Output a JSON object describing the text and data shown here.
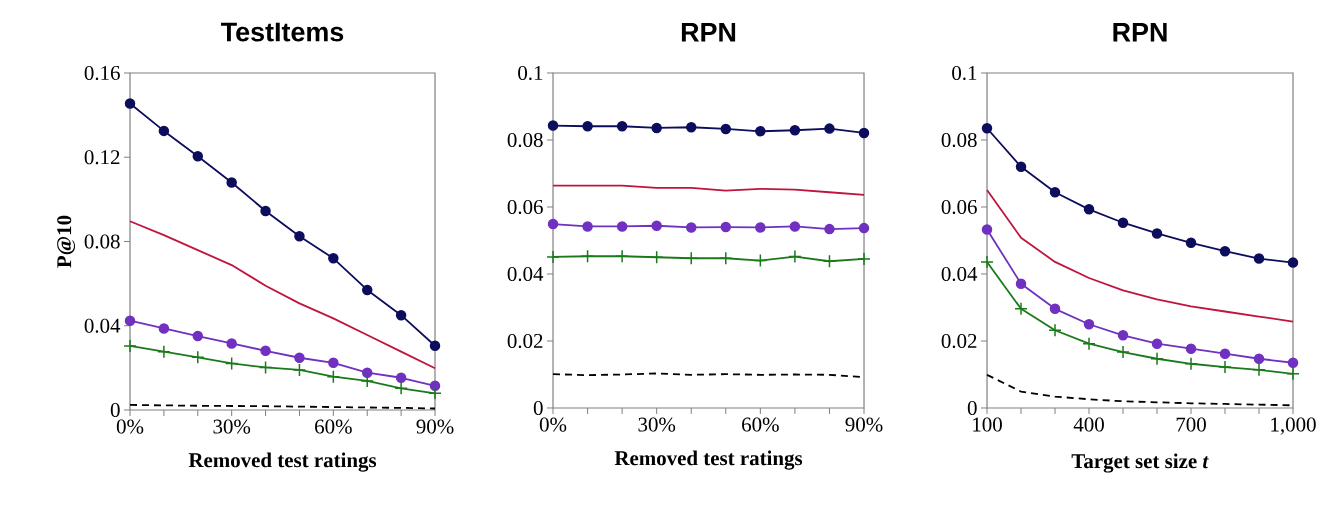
{
  "chart_data": [
    {
      "type": "line",
      "title": "TestItems",
      "xlabel": "Removed test ratings",
      "ylabel": "P@10",
      "x": [
        0,
        10,
        20,
        30,
        40,
        50,
        60,
        70,
        80,
        90
      ],
      "xlim": [
        0,
        90
      ],
      "ylim": [
        0,
        0.16
      ],
      "xticks": [
        {
          "value": 0,
          "label": "0%"
        },
        {
          "value": 10,
          "label": null
        },
        {
          "value": 20,
          "label": null
        },
        {
          "value": 30,
          "label": "30%"
        },
        {
          "value": 40,
          "label": null
        },
        {
          "value": 50,
          "label": null
        },
        {
          "value": 60,
          "label": "60%"
        },
        {
          "value": 70,
          "label": null
        },
        {
          "value": 80,
          "label": null
        },
        {
          "value": 90,
          "label": "90%"
        }
      ],
      "yticks": [
        0,
        0.04,
        0.08,
        0.12,
        0.16
      ],
      "series": [
        {
          "color": "#0d0d5e",
          "marker": "circle",
          "line_style": "solid",
          "values": [
            0.1455,
            0.1325,
            0.1205,
            0.108,
            0.0945,
            0.0825,
            0.072,
            0.057,
            0.045,
            0.0305
          ]
        },
        {
          "color": "#c0143c",
          "marker": "none",
          "line_style": "solid",
          "values": [
            0.0896,
            0.083,
            0.0759,
            0.0688,
            0.059,
            0.0506,
            0.0435,
            0.0356,
            0.0277,
            0.0198
          ]
        },
        {
          "color": "#7030c0",
          "marker": "circle",
          "line_style": "solid",
          "values": [
            0.0424,
            0.0387,
            0.0351,
            0.0316,
            0.0281,
            0.0248,
            0.0224,
            0.0177,
            0.0153,
            0.0115
          ]
        },
        {
          "color": "#1a7a1a",
          "marker": "cross",
          "line_style": "solid",
          "values": [
            0.0304,
            0.0277,
            0.025,
            0.0221,
            0.0202,
            0.019,
            0.0158,
            0.0138,
            0.0103,
            0.0079
          ]
        },
        {
          "color": "#000000",
          "marker": "none",
          "line_style": "dashed",
          "values": [
            0.0024,
            0.0022,
            0.002,
            0.0019,
            0.0018,
            0.0016,
            0.0014,
            0.0012,
            0.001,
            0.0007
          ]
        }
      ]
    },
    {
      "type": "line",
      "title": "RPN",
      "xlabel": "Removed test ratings",
      "x": [
        0,
        10,
        20,
        30,
        40,
        50,
        60,
        70,
        80,
        90
      ],
      "xlim": [
        0,
        90
      ],
      "ylim": [
        0,
        0.1
      ],
      "xticks": [
        {
          "value": 0,
          "label": "0%"
        },
        {
          "value": 10,
          "label": null
        },
        {
          "value": 20,
          "label": null
        },
        {
          "value": 30,
          "label": "30%"
        },
        {
          "value": 40,
          "label": null
        },
        {
          "value": 50,
          "label": null
        },
        {
          "value": 60,
          "label": "60%"
        },
        {
          "value": 70,
          "label": null
        },
        {
          "value": 80,
          "label": null
        },
        {
          "value": 90,
          "label": "90%"
        }
      ],
      "yticks": [
        0,
        0.02,
        0.04,
        0.06,
        0.08,
        0.1
      ],
      "series": [
        {
          "color": "#0d0d5e",
          "marker": "circle",
          "line_style": "solid",
          "values": [
            0.0843,
            0.0841,
            0.0841,
            0.0836,
            0.0838,
            0.0833,
            0.0826,
            0.0829,
            0.0834,
            0.0821
          ]
        },
        {
          "color": "#c0143c",
          "marker": "none",
          "line_style": "solid",
          "values": [
            0.0664,
            0.0664,
            0.0664,
            0.0657,
            0.0657,
            0.0649,
            0.0654,
            0.0652,
            0.0644,
            0.0636
          ]
        },
        {
          "color": "#7030c0",
          "marker": "circle",
          "line_style": "solid",
          "values": [
            0.0549,
            0.0542,
            0.0542,
            0.0544,
            0.0539,
            0.054,
            0.0539,
            0.0542,
            0.0534,
            0.0537
          ]
        },
        {
          "color": "#1a7a1a",
          "marker": "cross",
          "line_style": "solid",
          "values": [
            0.0451,
            0.0453,
            0.0453,
            0.045,
            0.0447,
            0.0447,
            0.044,
            0.0452,
            0.0438,
            0.0445
          ]
        },
        {
          "color": "#000000",
          "marker": "none",
          "line_style": "dashed",
          "values": [
            0.0101,
            0.0098,
            0.01,
            0.0103,
            0.0099,
            0.0101,
            0.0099,
            0.01,
            0.0099,
            0.0092
          ]
        }
      ]
    },
    {
      "type": "line",
      "title": "RPN",
      "xlabel": "Target set size *t*",
      "x": [
        100,
        200,
        300,
        400,
        500,
        600,
        700,
        800,
        900,
        1000
      ],
      "xlim": [
        100,
        1000
      ],
      "ylim": [
        0,
        0.1
      ],
      "xticks": [
        100,
        {
          "value": 200,
          "label": null
        },
        {
          "value": 300,
          "label": null
        },
        400,
        {
          "value": 500,
          "label": null
        },
        {
          "value": 600,
          "label": null
        },
        700,
        {
          "value": 800,
          "label": null
        },
        {
          "value": 900,
          "label": null
        },
        {
          "value": 1000,
          "label": "1,000"
        }
      ],
      "yticks": [
        0,
        0.02,
        0.04,
        0.06,
        0.08,
        0.1
      ],
      "series": [
        {
          "color": "#0d0d5e",
          "marker": "circle",
          "line_style": "solid",
          "values": [
            0.0835,
            0.072,
            0.0644,
            0.0593,
            0.0553,
            0.0521,
            0.0493,
            0.0468,
            0.0446,
            0.0434
          ]
        },
        {
          "color": "#c0143c",
          "marker": "none",
          "line_style": "solid",
          "values": [
            0.0651,
            0.0508,
            0.0436,
            0.0388,
            0.0351,
            0.0324,
            0.0303,
            0.0288,
            0.0273,
            0.0258
          ]
        },
        {
          "color": "#7030c0",
          "marker": "circle",
          "line_style": "solid",
          "values": [
            0.0533,
            0.0371,
            0.0296,
            0.025,
            0.0217,
            0.0192,
            0.0177,
            0.0162,
            0.0147,
            0.0135
          ]
        },
        {
          "color": "#1a7a1a",
          "marker": "cross",
          "line_style": "solid",
          "values": [
            0.0436,
            0.0296,
            0.0232,
            0.0192,
            0.0167,
            0.0147,
            0.0132,
            0.0122,
            0.0114,
            0.0102
          ]
        },
        {
          "color": "#000000",
          "marker": "none",
          "line_style": "dashed",
          "values": [
            0.0099,
            0.0049,
            0.0034,
            0.0026,
            0.002,
            0.0017,
            0.0014,
            0.0012,
            0.001,
            0.0008
          ]
        }
      ]
    }
  ]
}
